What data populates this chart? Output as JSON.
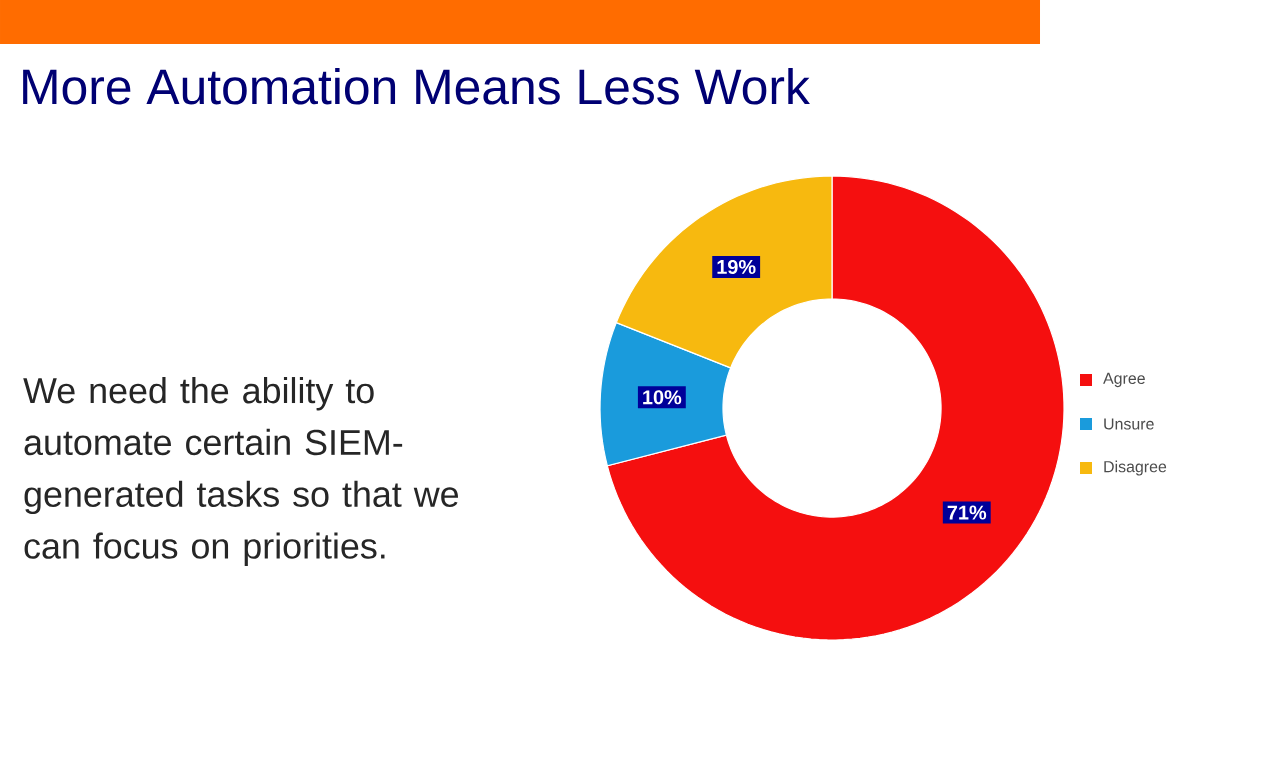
{
  "chart_data": {
    "type": "donut",
    "title": "More Automation Means Less Work",
    "annotations": [
      "We need the ability to automate certain SIEM-generated tasks so that we can focus on priorities."
    ],
    "categories": [
      "Agree",
      "Unsure",
      "Disagree"
    ],
    "values": [
      71,
      10,
      19
    ],
    "colors": [
      "#f50f0f",
      "#1a9bdc",
      "#f7b90f"
    ],
    "value_labels": [
      "71%",
      "10%",
      "19%"
    ],
    "legend": "right"
  }
}
